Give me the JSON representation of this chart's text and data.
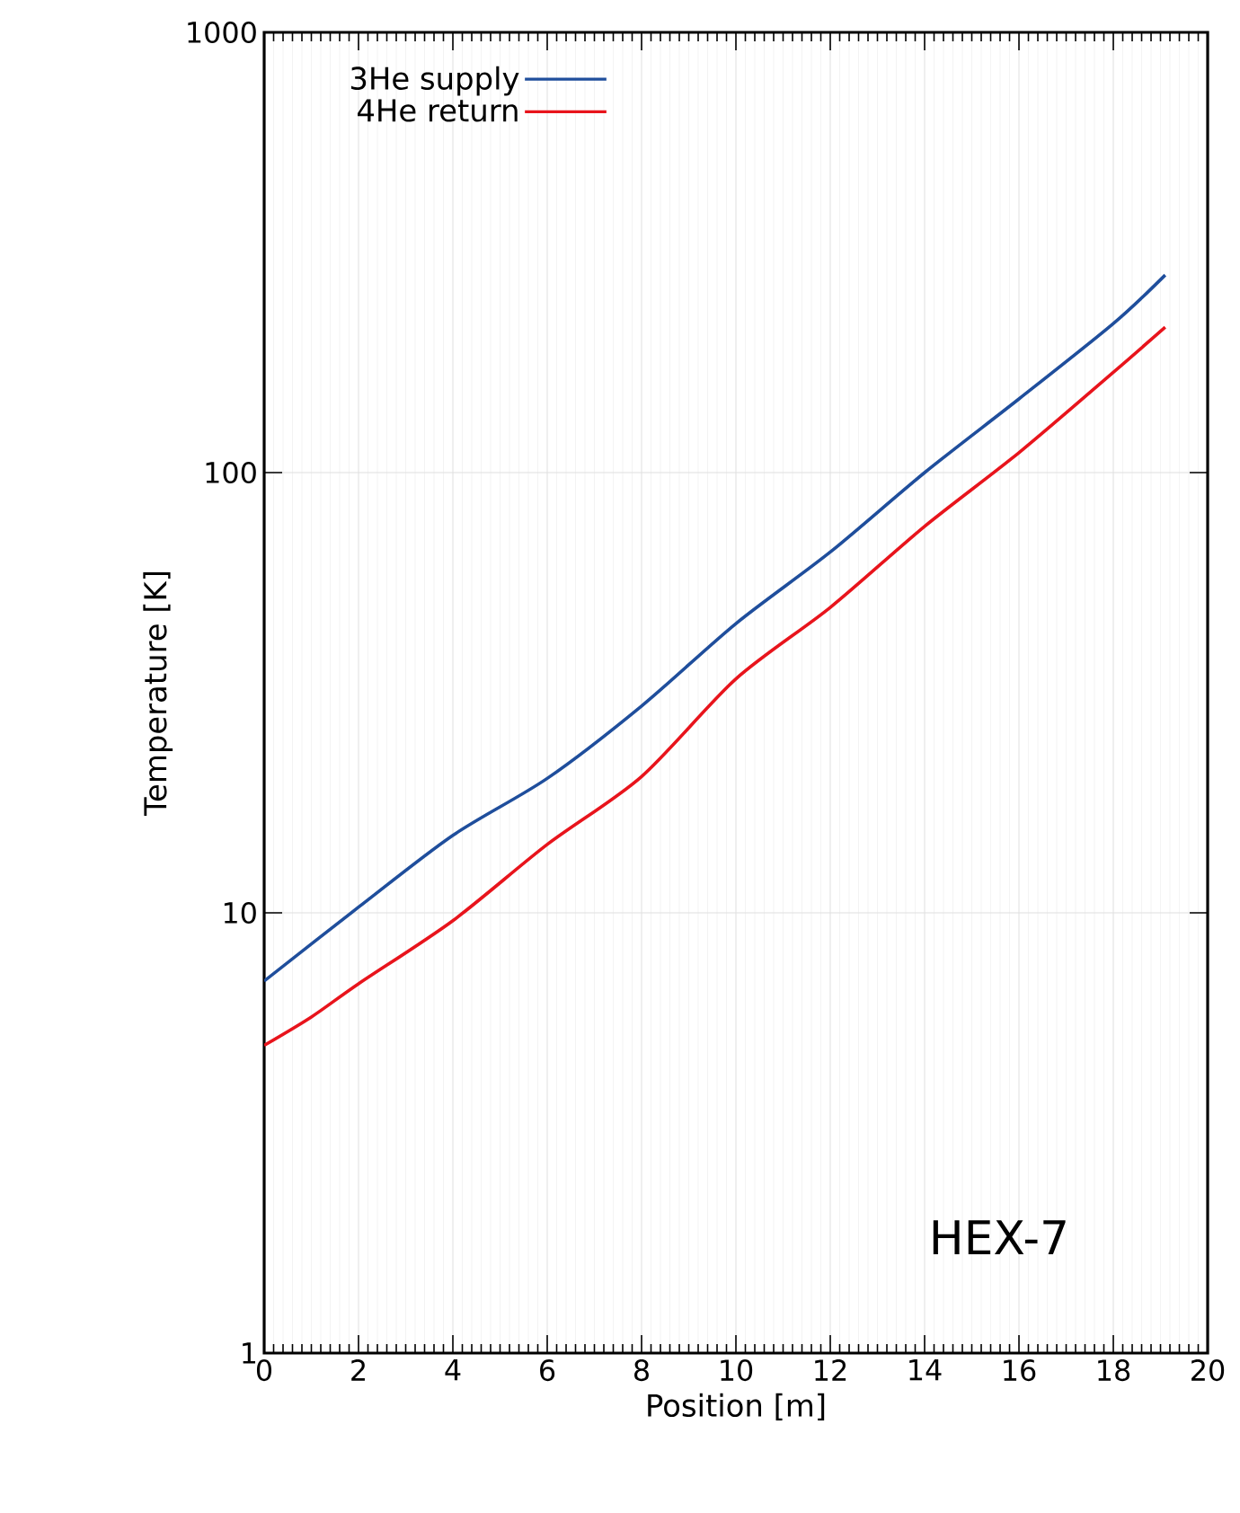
{
  "chart_data": {
    "type": "line",
    "xlabel": "Position [m]",
    "ylabel": "Temperature [K]",
    "annotations": [
      "HEX-7"
    ],
    "series": [
      {
        "name": "3He supply",
        "color": "#1f4e9c",
        "x": [
          0,
          2,
          4,
          6,
          8,
          10,
          12,
          14,
          16,
          18,
          19.1
        ],
        "values": [
          7.0,
          10.3,
          15.0,
          20.2,
          29.5,
          45.4,
          66,
          100,
          147,
          218,
          281
        ]
      },
      {
        "name": "4He return",
        "color": "#e8141c",
        "x": [
          0,
          1,
          2,
          4,
          6,
          8,
          10,
          12,
          14,
          16,
          18,
          19.1
        ],
        "values": [
          5.0,
          5.8,
          6.9,
          9.6,
          14.3,
          20.4,
          34,
          49.4,
          75.5,
          111,
          169,
          214
        ]
      }
    ],
    "xlim": [
      0,
      20
    ],
    "ylim": [
      1,
      1000
    ],
    "xticks": [
      0,
      2,
      4,
      6,
      8,
      10,
      12,
      14,
      16,
      18,
      20
    ],
    "yticks": [
      1,
      10,
      100,
      1000
    ],
    "log": "y",
    "grid": true,
    "legend": "top left",
    "marker": "none",
    "line_style": "solid"
  }
}
